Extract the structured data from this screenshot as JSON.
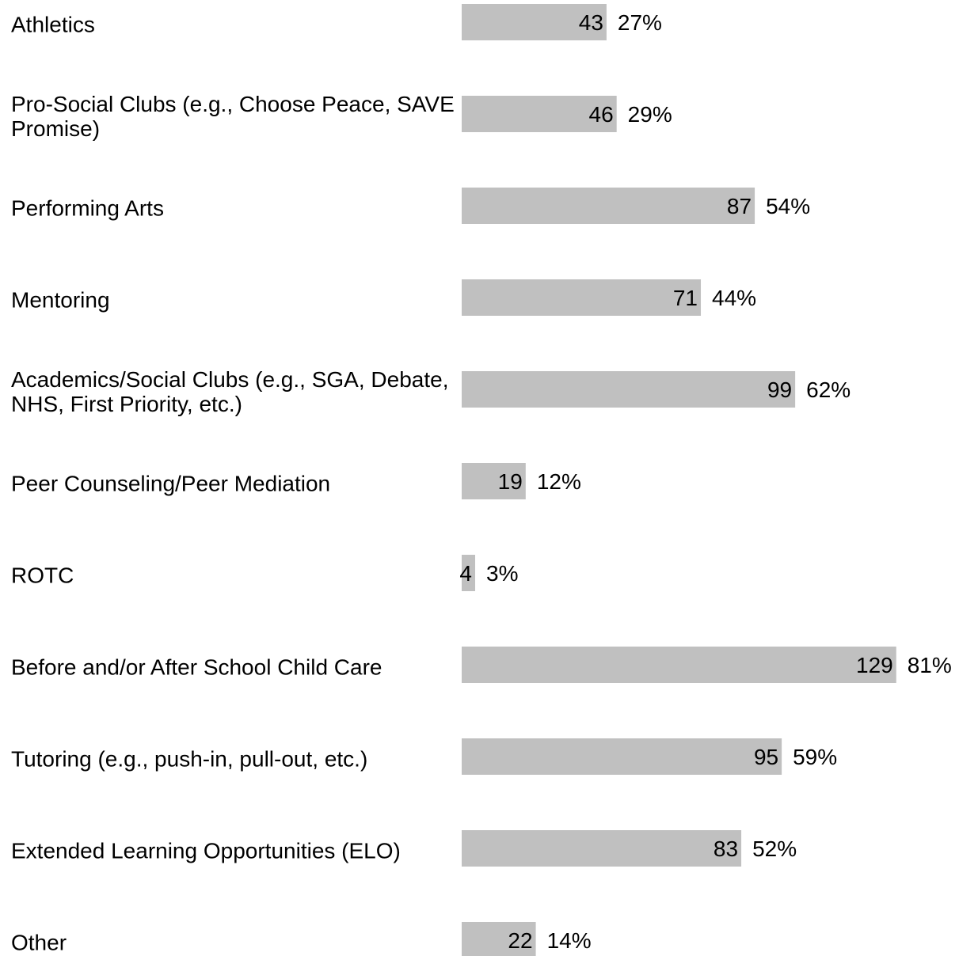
{
  "chart_data": {
    "type": "bar",
    "orientation": "horizontal",
    "categories": [
      "Athletics",
      "Pro-Social Clubs (e.g., Choose Peace, SAVE Promise)",
      "Performing Arts",
      "Mentoring",
      "Academics/Social Clubs (e.g., SGA, Debate, NHS, First Priority, etc.)",
      "Peer Counseling/Peer Mediation",
      "ROTC",
      "Before and/or After School Child Care",
      "Tutoring (e.g., push-in, pull-out, etc.)",
      "Extended Learning Opportunities (ELO)",
      "Other"
    ],
    "values": [
      43,
      46,
      87,
      71,
      99,
      19,
      4,
      129,
      95,
      83,
      22
    ],
    "percent_values": [
      27,
      29,
      54,
      44,
      62,
      12,
      3,
      81,
      59,
      52,
      14
    ],
    "percent_labels": [
      "27%",
      "29%",
      "54%",
      "44%",
      "62%",
      "12%",
      "3%",
      "81%",
      "59%",
      "52%",
      "14%"
    ],
    "color": "#c0c0c0",
    "xlim": [
      0,
      130
    ]
  }
}
